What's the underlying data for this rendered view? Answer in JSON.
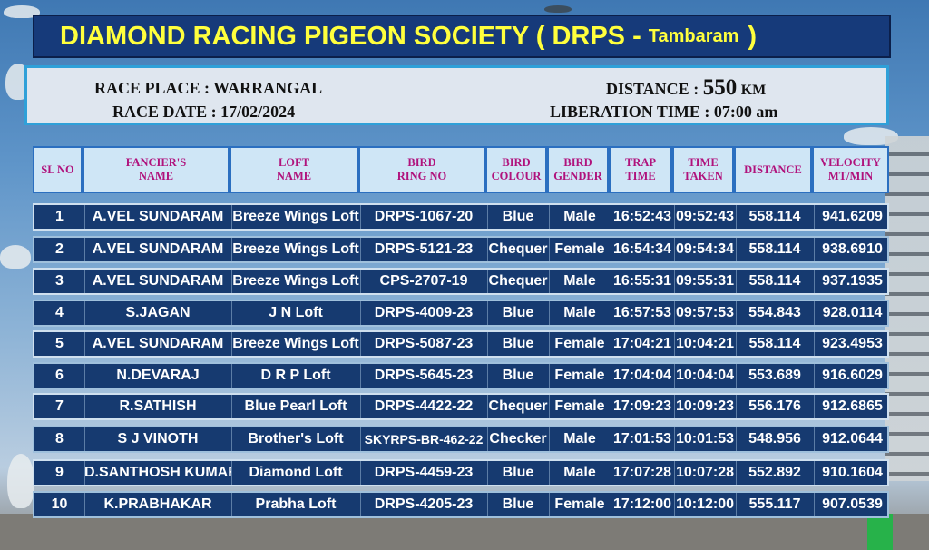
{
  "header": {
    "title": "DIAMOND RACING PIGEON SOCIETY  ( DRPS -",
    "location": "Tambaram",
    "title_close": ")"
  },
  "race": {
    "place_label": "RACE PLACE : WARRANGAL",
    "date_label": "RACE DATE : 17/02/2024",
    "distance_label": "DISTANCE :",
    "distance_value": "550",
    "distance_unit": "KM",
    "liberation_label": "LIBERATION TIME : 07:00 am"
  },
  "columns": [
    [
      "SL NO"
    ],
    [
      "FANCIER'S",
      "NAME"
    ],
    [
      "LOFT",
      "NAME"
    ],
    [
      "BIRD",
      "RING NO"
    ],
    [
      "BIRD",
      "COLOUR"
    ],
    [
      "BIRD",
      "GENDER"
    ],
    [
      "TRAP",
      "TIME"
    ],
    [
      "TIME",
      "TAKEN"
    ],
    [
      "DISTANCE"
    ],
    [
      "VELOCITY",
      "MT/MIN"
    ]
  ],
  "rows": [
    [
      "1",
      "A.VEL SUNDARAM",
      "Breeze Wings Loft",
      "DRPS-1067-20",
      "Blue",
      "Male",
      "16:52:43",
      "09:52:43",
      "558.114",
      "941.6209"
    ],
    [
      "2",
      "A.VEL SUNDARAM",
      "Breeze Wings Loft",
      "DRPS-5121-23",
      "Chequer",
      "Female",
      "16:54:34",
      "09:54:34",
      "558.114",
      "938.6910"
    ],
    [
      "3",
      "A.VEL SUNDARAM",
      "Breeze Wings Loft",
      "CPS-2707-19",
      "Chequer",
      "Male",
      "16:55:31",
      "09:55:31",
      "558.114",
      "937.1935"
    ],
    [
      "4",
      "S.JAGAN",
      "J N Loft",
      "DRPS-4009-23",
      "Blue",
      "Male",
      "16:57:53",
      "09:57:53",
      "554.843",
      "928.0114"
    ],
    [
      "5",
      "A.VEL SUNDARAM",
      "Breeze Wings Loft",
      "DRPS-5087-23",
      "Blue",
      "Female",
      "17:04:21",
      "10:04:21",
      "558.114",
      "923.4953"
    ],
    [
      "6",
      "N.DEVARAJ",
      "D R P Loft",
      "DRPS-5645-23",
      "Blue",
      "Female",
      "17:04:04",
      "10:04:04",
      "553.689",
      "916.6029"
    ],
    [
      "7",
      "R.SATHISH",
      "Blue Pearl Loft",
      "DRPS-4422-22",
      "Chequer",
      "Female",
      "17:09:23",
      "10:09:23",
      "556.176",
      "912.6865"
    ],
    [
      "8",
      "S J VINOTH",
      "Brother's Loft",
      "SKYRPS-BR-462-22",
      "Checker",
      "Male",
      "17:01:53",
      "10:01:53",
      "548.956",
      "912.0644"
    ],
    [
      "9",
      "D.SANTHOSH KUMAR",
      "Diamond Loft",
      "DRPS-4459-23",
      "Blue",
      "Male",
      "17:07:28",
      "10:07:28",
      "552.892",
      "910.1604"
    ],
    [
      "10",
      "K.PRABHAKAR",
      "Prabha Loft",
      "DRPS-4205-23",
      "Blue",
      "Female",
      "17:12:00",
      "10:12:00",
      "555.117",
      "907.0539"
    ]
  ],
  "colors": {
    "title_bg": "#163a7a",
    "title_text": "#ffff3d",
    "header_text": "#b0127c",
    "row_bg": "#163a70"
  }
}
